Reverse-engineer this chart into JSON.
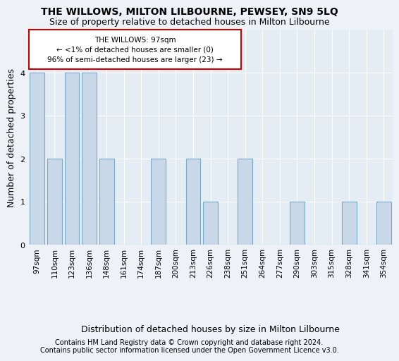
{
  "title": "THE WILLOWS, MILTON LILBOURNE, PEWSEY, SN9 5LQ",
  "subtitle": "Size of property relative to detached houses in Milton Lilbourne",
  "xlabel": "Distribution of detached houses by size in Milton Lilbourne",
  "ylabel": "Number of detached properties",
  "categories": [
    "97sqm",
    "110sqm",
    "123sqm",
    "136sqm",
    "148sqm",
    "161sqm",
    "174sqm",
    "187sqm",
    "200sqm",
    "213sqm",
    "226sqm",
    "238sqm",
    "251sqm",
    "264sqm",
    "277sqm",
    "290sqm",
    "303sqm",
    "315sqm",
    "328sqm",
    "341sqm",
    "354sqm"
  ],
  "values": [
    4,
    2,
    4,
    4,
    2,
    0,
    0,
    2,
    0,
    2,
    1,
    0,
    2,
    0,
    0,
    1,
    0,
    0,
    1,
    0,
    1
  ],
  "bar_color": "#c8d8e8",
  "bar_edge_color": "#7aaac8",
  "ylim": [
    0,
    5
  ],
  "yticks": [
    0,
    1,
    2,
    3,
    4
  ],
  "annotation_title": "THE WILLOWS: 97sqm",
  "annotation_line1": "← <1% of detached houses are smaller (0)",
  "annotation_line2": "96% of semi-detached houses are larger (23) →",
  "footer_line1": "Contains HM Land Registry data © Crown copyright and database right 2024.",
  "footer_line2": "Contains public sector information licensed under the Open Government Licence v3.0.",
  "background_color": "#eef2f7",
  "plot_bg_color": "#e4ecf4",
  "grid_color": "#ffffff",
  "title_fontsize": 10,
  "subtitle_fontsize": 9,
  "axis_label_fontsize": 9,
  "tick_fontsize": 7.5,
  "footer_fontsize": 7
}
